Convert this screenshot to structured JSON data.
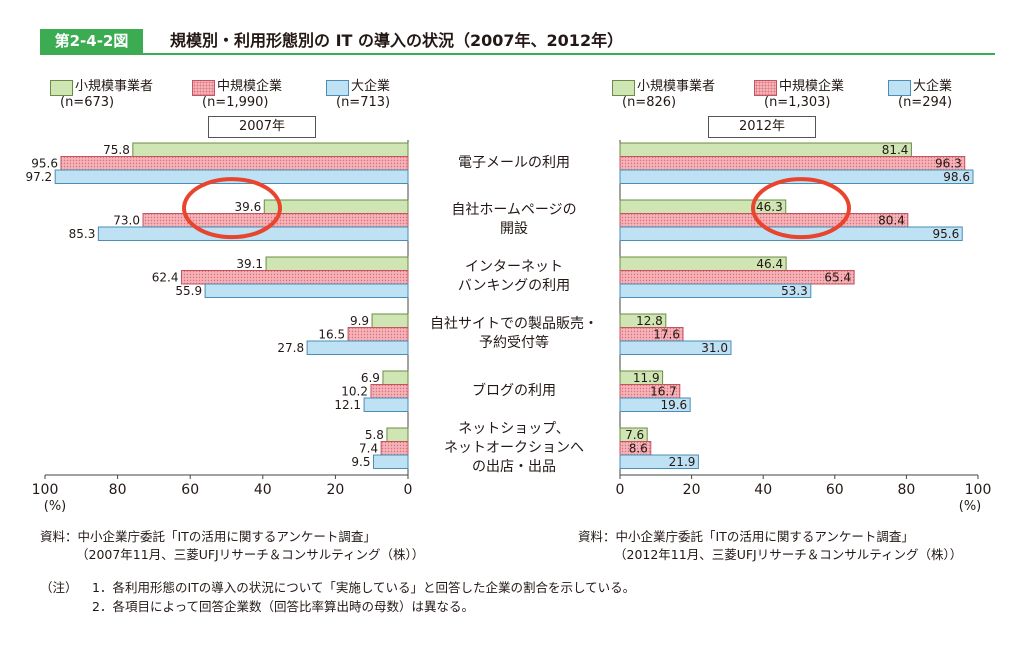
{
  "header": {
    "figure_label": "第2-4-2図",
    "title": "規模別・利用形態別の IT の導入の状況（2007年、2012年）"
  },
  "legend_left": [
    {
      "name": "小規模事業者",
      "n": "(n=673)"
    },
    {
      "name": "中規模企業",
      "n": "(n=1,990)"
    },
    {
      "name": "大企業",
      "n": "(n=713)"
    }
  ],
  "legend_right": [
    {
      "name": "小規模事業者",
      "n": "(n=826)"
    },
    {
      "name": "中規模企業",
      "n": "(n=1,303)"
    },
    {
      "name": "大企業",
      "n": "(n=294)"
    }
  ],
  "colors": {
    "small_fill": "#cfe5b3",
    "small_stroke": "#6a8c46",
    "mid_fill": "#f4b3b8",
    "mid_stroke": "#c25560",
    "large_fill": "#bfe1f4",
    "large_stroke": "#4a8db5",
    "accent": "#3cac52",
    "highlight": "#e8442e"
  },
  "chart_data": [
    {
      "type": "bar",
      "orientation": "horizontal-mirrored",
      "title": "2007年",
      "categories": [
        [
          "電子メールの利用"
        ],
        [
          "自社ホームページの",
          "開設"
        ],
        [
          "インターネット",
          "バンキングの利用"
        ],
        [
          "自社サイトでの製品販売・",
          "予約受付等"
        ],
        [
          "ブログの利用"
        ],
        [
          "ネットショップ、",
          "ネットオークションへ",
          "の出店・出品"
        ]
      ],
      "series": [
        {
          "name": "小規模事業者",
          "values": [
            75.8,
            39.6,
            39.1,
            9.9,
            6.9,
            5.8
          ],
          "labels": [
            "75.8",
            "39.6",
            "39.1",
            "9.9",
            "6.9",
            "5.8"
          ]
        },
        {
          "name": "中規模企業",
          "values": [
            95.6,
            73.0,
            62.4,
            16.5,
            10.2,
            7.4
          ],
          "labels": [
            "95.6",
            "73.0",
            "62.4",
            "16.5",
            "10.2",
            "7.4"
          ]
        },
        {
          "name": "大企業",
          "values": [
            97.2,
            85.3,
            55.9,
            27.8,
            12.1,
            9.5
          ],
          "labels": [
            "97.2",
            "85.3",
            "55.9",
            "27.8",
            "12.1",
            "9.5"
          ]
        }
      ],
      "xlim": [
        0,
        100
      ],
      "ticks": [
        "100",
        "80",
        "60",
        "40",
        "20",
        "0"
      ],
      "unit": "(%)",
      "highlight_category": 1,
      "highlight_series": 0
    },
    {
      "type": "bar",
      "orientation": "horizontal",
      "title": "2012年",
      "series": [
        {
          "name": "小規模事業者",
          "values": [
            81.4,
            46.3,
            46.4,
            12.8,
            11.9,
            7.6
          ],
          "labels": [
            "81.4",
            "46.3",
            "46.4",
            "12.8",
            "11.9",
            "7.6"
          ]
        },
        {
          "name": "中規模企業",
          "values": [
            96.3,
            80.4,
            65.4,
            17.6,
            16.7,
            8.6
          ],
          "labels": [
            "96.3",
            "80.4",
            "65.4",
            "17.6",
            "16.7",
            "8.6"
          ]
        },
        {
          "name": "大企業",
          "values": [
            98.6,
            95.6,
            53.3,
            31.0,
            19.6,
            21.9
          ],
          "labels": [
            "98.6",
            "95.6",
            "53.3",
            "31.0",
            "19.6",
            "21.9"
          ]
        }
      ],
      "xlim": [
        0,
        100
      ],
      "ticks": [
        "0",
        "20",
        "40",
        "60",
        "80",
        "100"
      ],
      "unit": "(%)",
      "highlight_category": 1,
      "highlight_series": 0
    }
  ],
  "sources": {
    "left_line1": "資料：中小企業庁委託「ITの活用に関するアンケート調査」",
    "left_line2": "（2007年11月、三菱UFJリサーチ＆コンサルティング（株））",
    "right_line1": "資料：中小企業庁委託「ITの活用に関するアンケート調査」",
    "right_line2": "（2012年11月、三菱UFJリサーチ＆コンサルティング（株））"
  },
  "notes": {
    "prefix": "（注）",
    "line1": "1．各利用形態のITの導入の状況について「実施している」と回答した企業の割合を示している。",
    "line2": "2．各項目によって回答企業数（回答比率算出時の母数）は異なる。"
  }
}
